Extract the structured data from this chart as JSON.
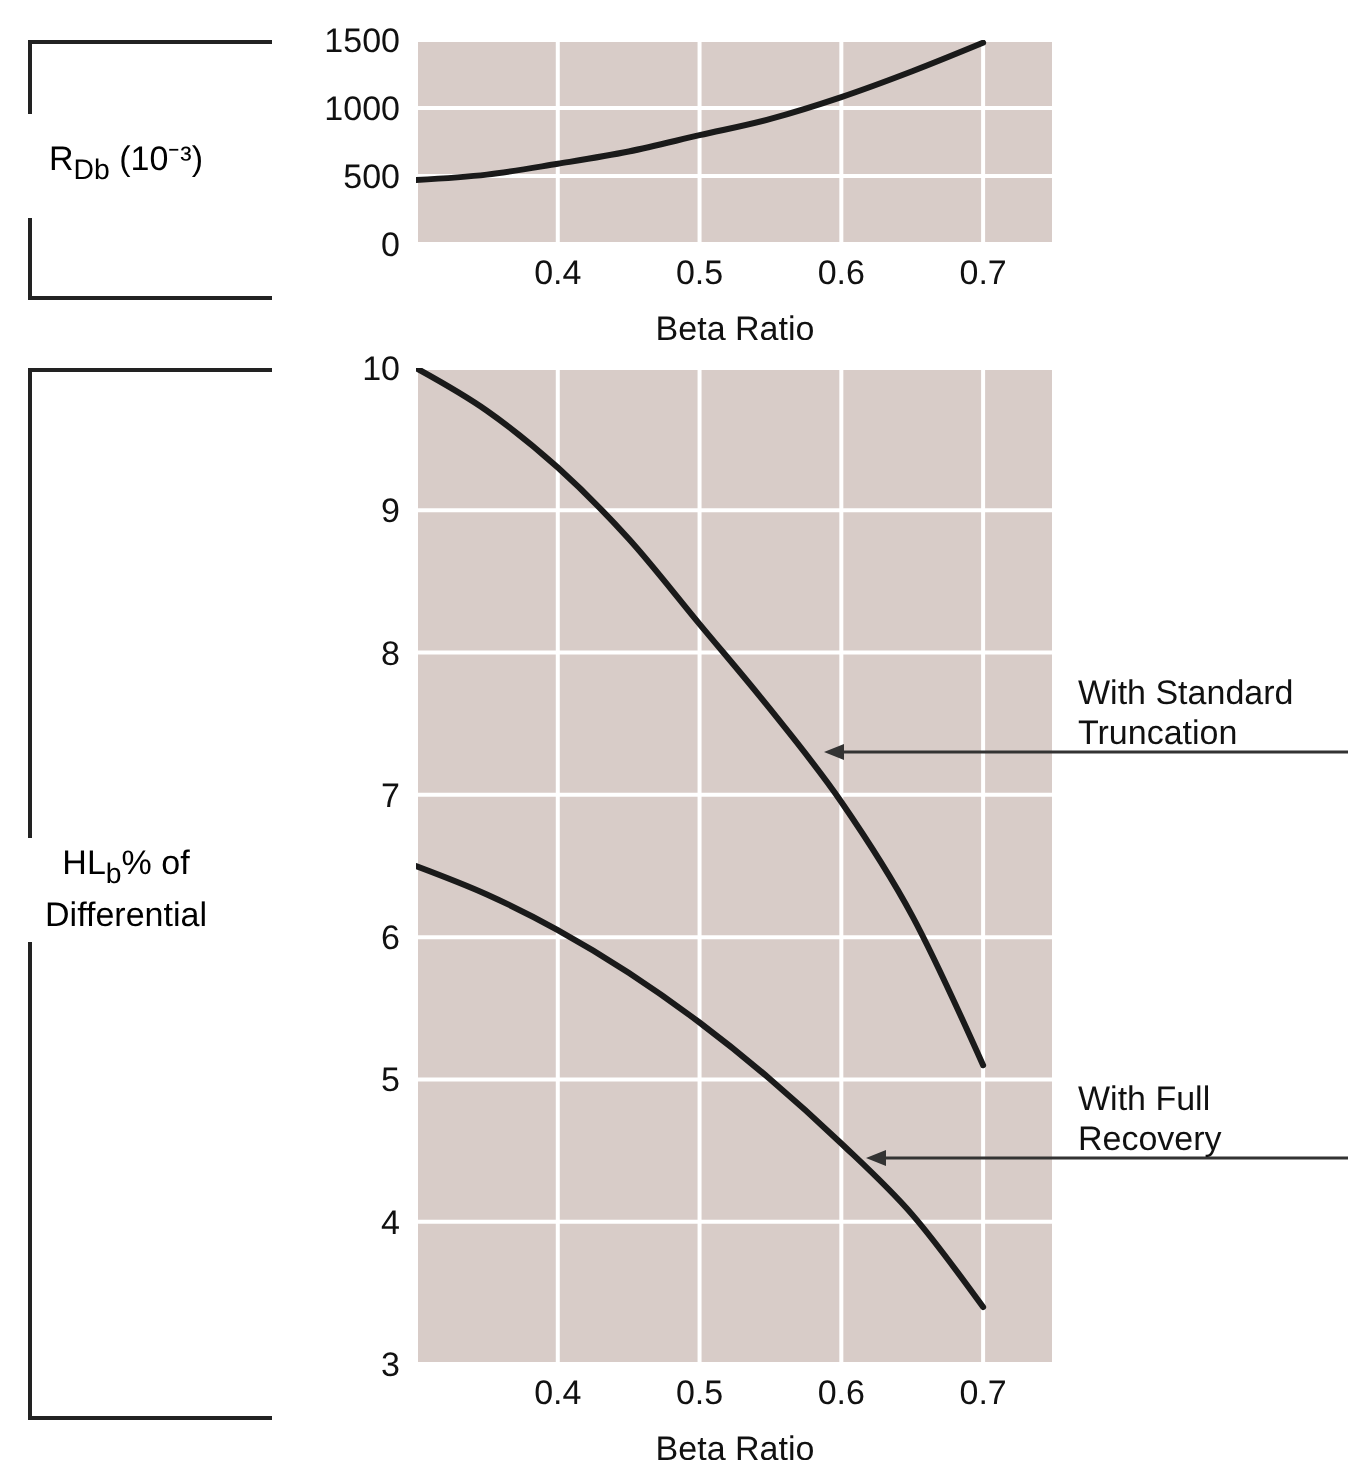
{
  "chart_data": [
    {
      "type": "line",
      "xlabel": "Beta Ratio",
      "ylabel": "R$_{Db}$  (10⁻³)",
      "x": [
        0.3,
        0.35,
        0.4,
        0.45,
        0.5,
        0.55,
        0.6,
        0.65,
        0.7
      ],
      "series": [
        {
          "color": "#1a1a1a",
          "values": [
            470,
            510,
            590,
            680,
            800,
            920,
            1080,
            1270,
            1480
          ]
        }
      ],
      "xlim": [
        0.3,
        0.75
      ],
      "xticks": [
        0.4,
        0.5,
        0.6,
        0.7
      ],
      "ylim": [
        0,
        1500
      ],
      "yticks": [
        0,
        500,
        1000,
        1500
      ],
      "grid": true
    },
    {
      "type": "line",
      "xlabel": "Beta Ratio",
      "ylabel": "HL$_{b}$% of Differential",
      "series": [
        {
          "color": "#1a1a1a",
          "x": [
            0.3,
            0.35,
            0.4,
            0.45,
            0.5,
            0.55,
            0.6,
            0.65,
            0.7
          ],
          "values": [
            10,
            9.7,
            9.3,
            8.8,
            8.2,
            7.6,
            6.95,
            6.15,
            5.1
          ]
        },
        {
          "color": "#1a1a1a",
          "x": [
            0.3,
            0.35,
            0.4,
            0.45,
            0.5,
            0.55,
            0.6,
            0.65,
            0.7
          ],
          "values": [
            6.5,
            6.3,
            6.05,
            5.75,
            5.4,
            5.0,
            4.55,
            4.05,
            3.4
          ]
        }
      ],
      "xlim": [
        0.3,
        0.75
      ],
      "xticks": [
        0.4,
        0.5,
        0.6,
        0.7
      ],
      "ylim": [
        3,
        10
      ],
      "yticks": [
        3,
        4,
        5,
        6,
        7,
        8,
        9,
        10
      ],
      "grid": true,
      "annotations": [
        "With Standard Truncation",
        "With Full Recovery"
      ]
    }
  ]
}
